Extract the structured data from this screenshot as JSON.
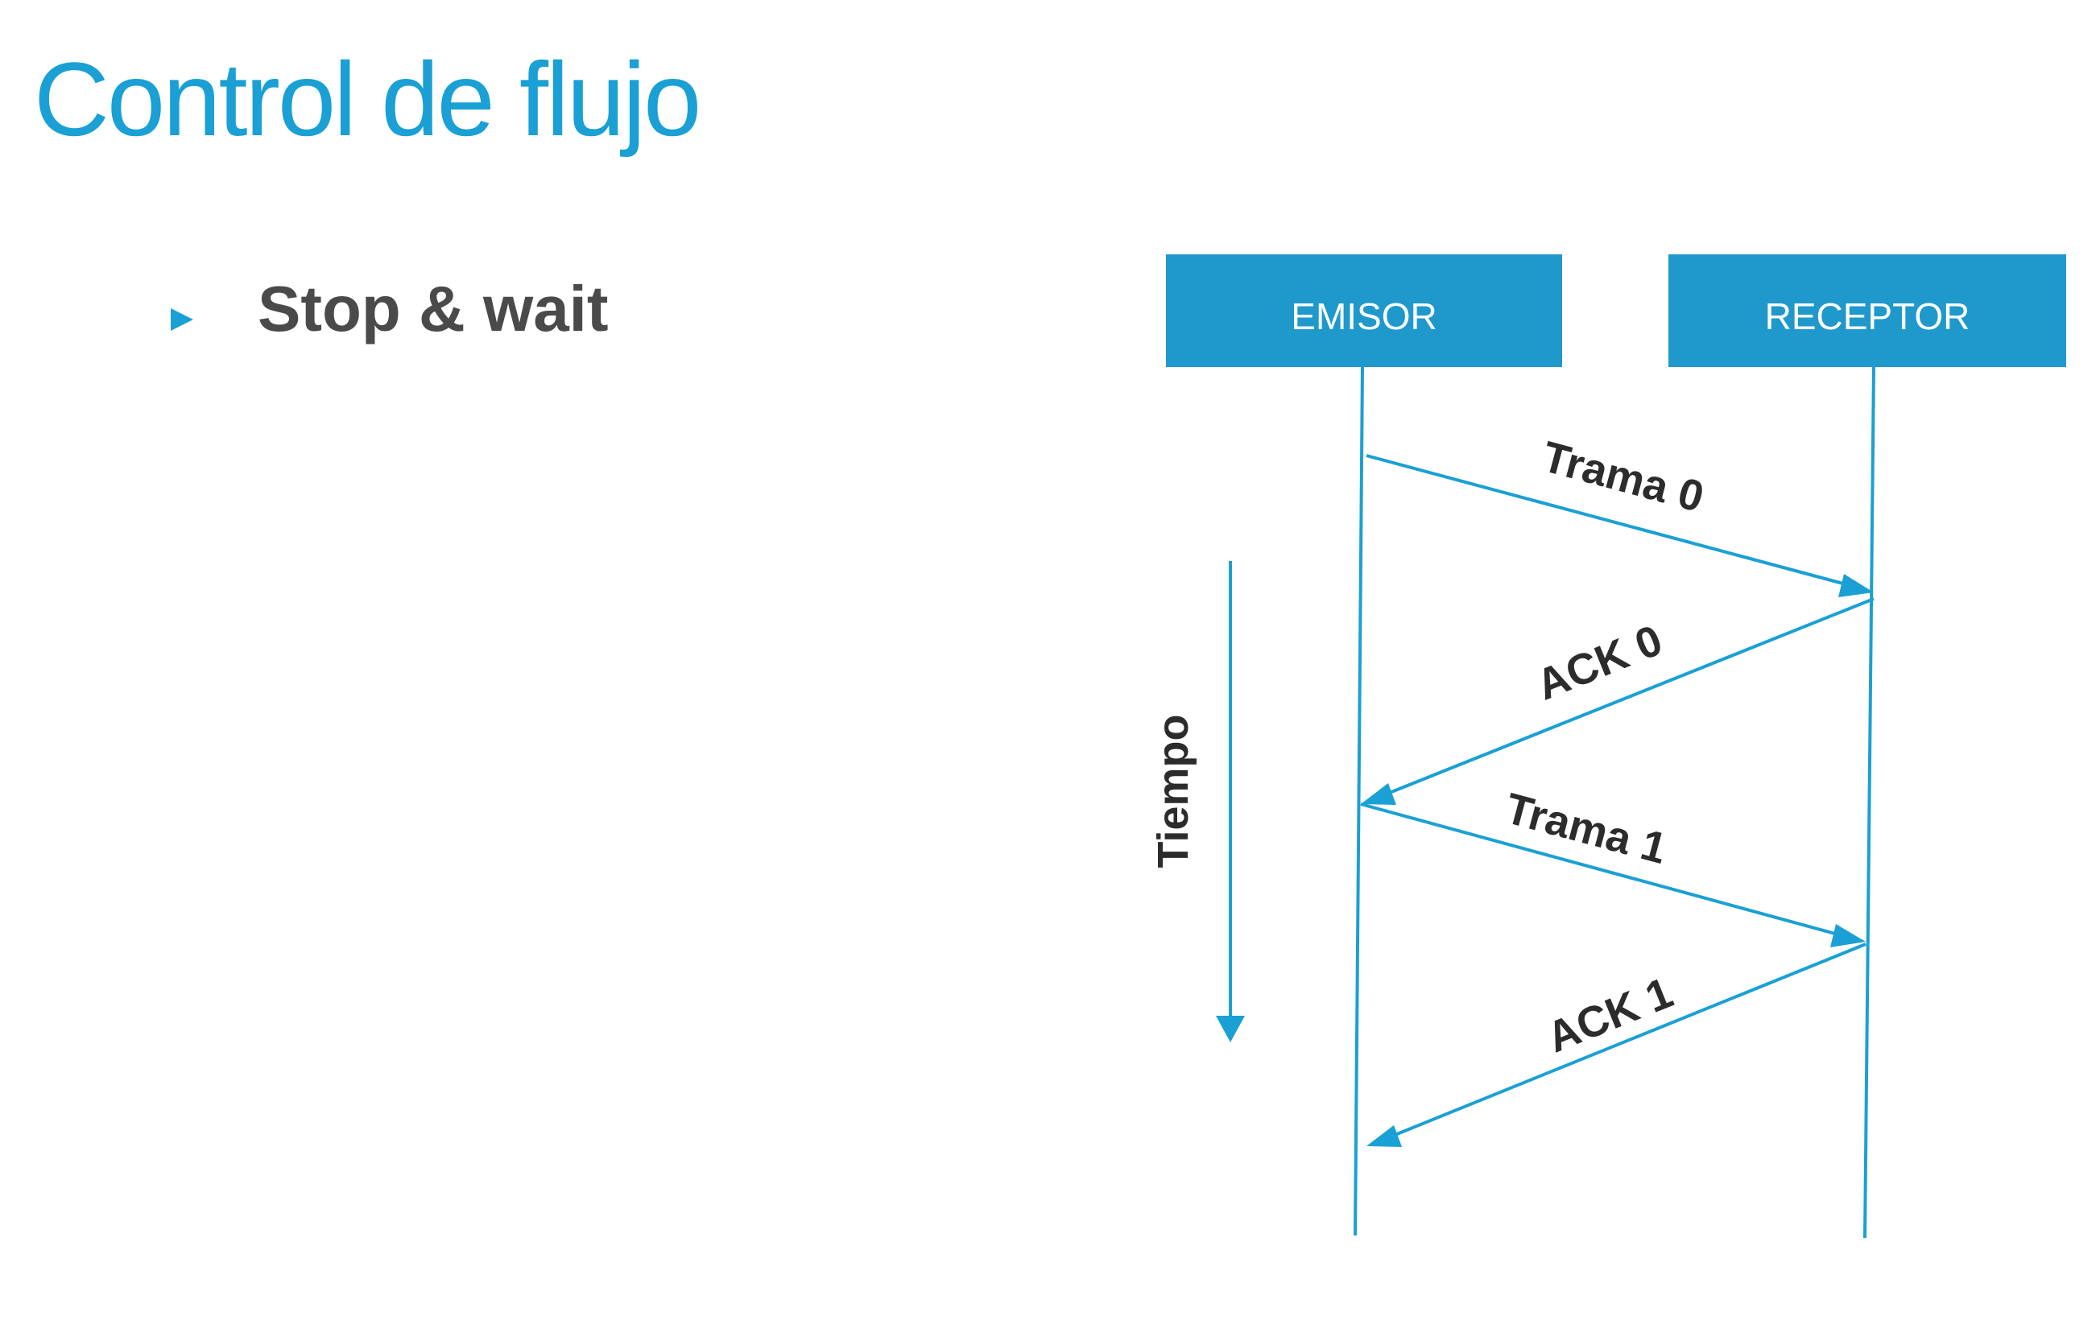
{
  "slide": {
    "title": "Control de flujo",
    "bullet": "Stop & wait"
  },
  "diagram": {
    "actors": {
      "sender": "EMISOR",
      "receiver": "RECEPTOR"
    },
    "time_label": "Tiempo",
    "messages": [
      {
        "label": "Trama 0",
        "direction": "sender-to-receiver"
      },
      {
        "label": "ACK 0",
        "direction": "receiver-to-sender"
      },
      {
        "label": "Trama 1",
        "direction": "sender-to-receiver"
      },
      {
        "label": "ACK 1",
        "direction": "receiver-to-sender"
      }
    ]
  },
  "colors": {
    "accent": "#1aa0d4",
    "box_fill": "#1f98cc",
    "text_dark": "#2c2c2c",
    "bullet_text": "#4a4a4a"
  }
}
